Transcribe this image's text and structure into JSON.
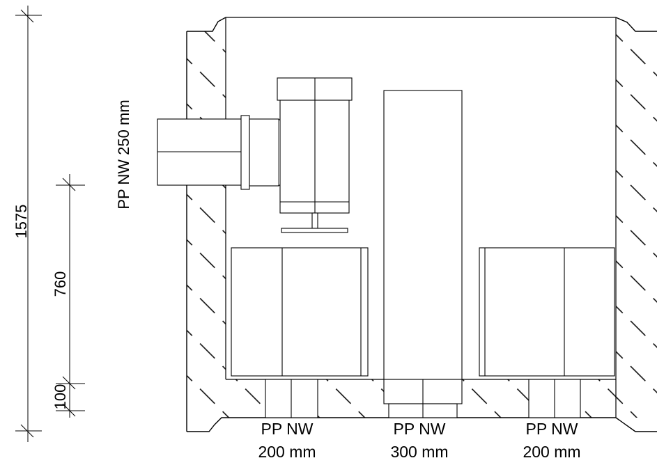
{
  "dimensions": {
    "total_height": "1575",
    "mid_height": "760",
    "base_height": "100"
  },
  "labels": {
    "inlet_pipe": "PP NW 250 mm",
    "outlet_left": [
      "PP NW",
      "200 mm"
    ],
    "outlet_center": [
      "PP NW",
      "300 mm"
    ],
    "outlet_right": [
      "PP NW",
      "200 mm"
    ]
  },
  "colors": {
    "line": "#000000",
    "background": "#ffffff"
  }
}
